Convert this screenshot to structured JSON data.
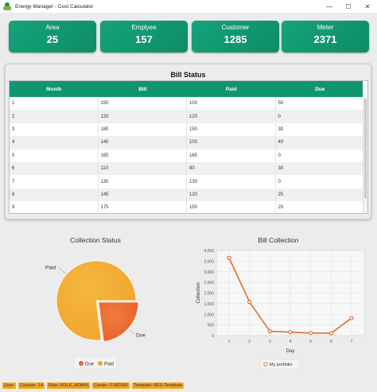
{
  "window": {
    "title": "Energy Manager - Cost Calculator",
    "icons": [
      "app-logo-icon",
      "minimize-icon",
      "maximize-icon",
      "close-icon"
    ]
  },
  "cards": [
    {
      "label": "Area",
      "value": "25"
    },
    {
      "label": "Emplyee",
      "value": "157"
    },
    {
      "label": "Customer",
      "value": "1285"
    },
    {
      "label": "Meter",
      "value": "2371"
    }
  ],
  "bill_status": {
    "title": "Bill Status",
    "columns": [
      "Month",
      "Bill",
      "Paid",
      "Due"
    ],
    "rows": [
      [
        "1",
        "150",
        "100",
        "50"
      ],
      [
        "2",
        "120",
        "120",
        "0"
      ],
      [
        "3",
        "180",
        "150",
        "30"
      ],
      [
        "4",
        "140",
        "100",
        "40"
      ],
      [
        "5",
        "165",
        "165",
        "0"
      ],
      [
        "6",
        "110",
        "80",
        "30"
      ],
      [
        "7",
        "130",
        "130",
        "0"
      ],
      [
        "8",
        "145",
        "120",
        "25"
      ],
      [
        "9",
        "175",
        "150",
        "25"
      ]
    ]
  },
  "colors": {
    "accent": "#0f9671",
    "card": "#14a37a",
    "pie_due": "#e8622c",
    "pie_paid": "#f0a32c",
    "line": "#e06d2f",
    "status_chip": "#f5a524"
  },
  "chart_data": [
    {
      "type": "pie",
      "title": "Collection Status",
      "categories": [
        "Due",
        "Paid"
      ],
      "values": [
        23,
        77
      ],
      "slice_labels": [
        "Due",
        "Paid"
      ],
      "legend": [
        "Due",
        "Paid"
      ],
      "legend_position": "bottom"
    },
    {
      "type": "line",
      "title": "Bill Collection",
      "xlabel": "Day",
      "ylabel": "Collection",
      "x": [
        1,
        2,
        3,
        4,
        5,
        6,
        7
      ],
      "series": [
        {
          "name": "My portfolio",
          "values": [
            3650,
            1580,
            200,
            160,
            120,
            110,
            820
          ]
        }
      ],
      "ylim": [
        0,
        4000
      ],
      "yticks": [
        "0",
        "500",
        "1,000",
        "1,500",
        "2,000",
        "2,500",
        "3,000",
        "3,500",
        "4,000"
      ],
      "xticks": [
        "1",
        "2",
        "3",
        "4",
        "5",
        "6",
        "7"
      ],
      "grid": true,
      "legend_position": "bottom"
    }
  ],
  "status_bar": [
    "User:",
    "Counter: 14",
    "Role: ROLE_ADMIN",
    "Center: IT-BD360",
    "Template: RED-Template"
  ]
}
